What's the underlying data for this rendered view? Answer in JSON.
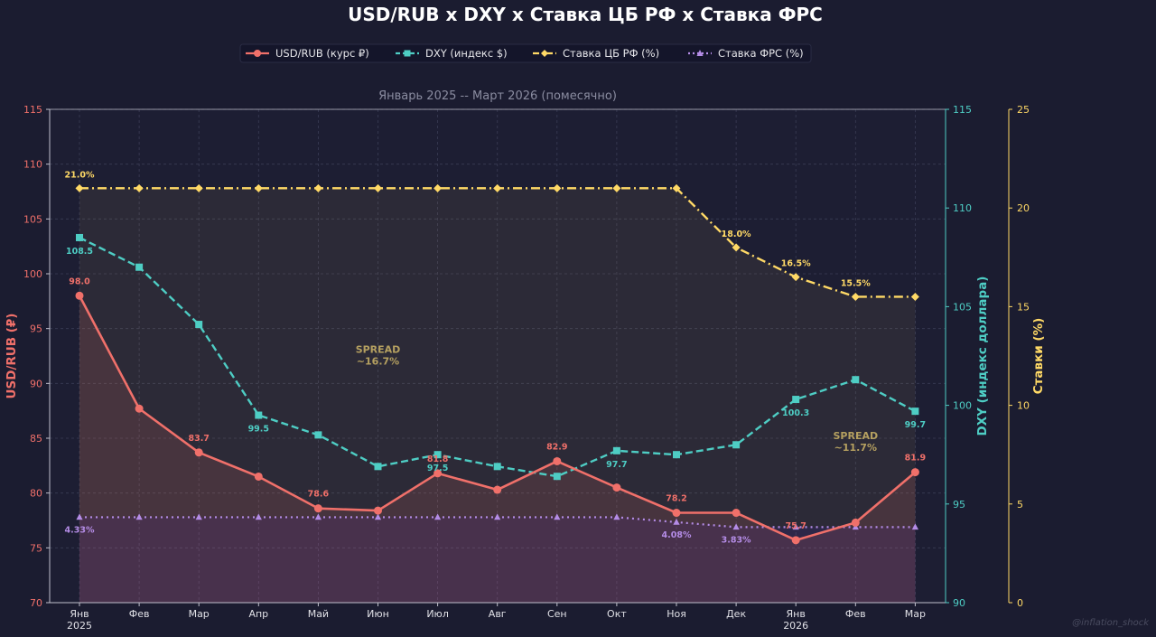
{
  "chart_data": {
    "type": "line",
    "title": "USD/RUB  x  DXY  x  Ставка ЦБ РФ  x  Ставка ФРС",
    "subtitle": "Январь 2025 -- Март 2026 (помесячно)",
    "categories": [
      "Янв",
      "Фев",
      "Мар",
      "Апр",
      "Май",
      "Июн",
      "Июл",
      "Авг",
      "Сен",
      "Окт",
      "Ноя",
      "Дек",
      "Янв",
      "Фев",
      "Мар"
    ],
    "year_labels": [
      "2025",
      "",
      "",
      "",
      "",
      "",
      "",
      "",
      "",
      "",
      "",
      "",
      "2026",
      "",
      ""
    ],
    "axes": {
      "left": {
        "label": "USD/RUB (₽)",
        "range": [
          70,
          115
        ],
        "ticks": [
          70,
          75,
          80,
          85,
          90,
          95,
          100,
          105,
          110,
          115
        ],
        "color": "#f0706a"
      },
      "right1": {
        "label": "DXY (индекс доллара)",
        "range": [
          90,
          115
        ],
        "ticks": [
          90,
          95,
          100,
          105,
          110,
          115
        ],
        "color": "#4ecdc4"
      },
      "right2": {
        "label": "Ставки (%)",
        "range": [
          0,
          25
        ],
        "ticks": [
          0,
          5,
          10,
          15,
          20,
          25
        ],
        "color": "#ffd966"
      }
    },
    "grid": true,
    "legend_position": "top-center",
    "series": [
      {
        "name": "USD/RUB (курс ₽)",
        "axis": "left",
        "color": "#f0706a",
        "values": [
          98.0,
          87.7,
          83.7,
          81.5,
          78.6,
          78.4,
          81.8,
          80.3,
          82.9,
          80.5,
          78.2,
          78.2,
          75.7,
          77.3,
          81.9
        ],
        "labels": [
          "98.0",
          "",
          "83.7",
          "",
          "78.6",
          "",
          "81.8",
          "",
          "82.9",
          "",
          "78.2",
          "",
          "75.7",
          "",
          "81.9"
        ]
      },
      {
        "name": "DXY (индекс $)",
        "axis": "right1",
        "color": "#4ecdc4",
        "values": [
          108.5,
          107.0,
          104.1,
          99.5,
          98.5,
          96.9,
          97.5,
          96.9,
          96.4,
          97.7,
          97.5,
          98.0,
          100.3,
          101.3,
          99.7
        ],
        "labels": [
          "108.5",
          "",
          "",
          "99.5",
          "",
          "",
          "97.5",
          "",
          "",
          "97.7",
          "",
          "",
          "100.3",
          "",
          "99.7"
        ]
      },
      {
        "name": "Ставка ЦБ РФ (%)",
        "axis": "right2",
        "color": "#ffd966",
        "values": [
          21.0,
          21.0,
          21.0,
          21.0,
          21.0,
          21.0,
          21.0,
          21.0,
          21.0,
          21.0,
          21.0,
          18.0,
          16.5,
          15.5,
          15.5
        ],
        "labels": [
          "21.0%",
          "",
          "",
          "",
          "",
          "",
          "",
          "",
          "",
          "",
          "",
          "18.0%",
          "16.5%",
          "15.5%",
          ""
        ]
      },
      {
        "name": "Ставка ФРС (%)",
        "axis": "right2",
        "color": "#b48ce6",
        "values": [
          4.33,
          4.33,
          4.33,
          4.33,
          4.33,
          4.33,
          4.33,
          4.33,
          4.33,
          4.33,
          4.08,
          3.83,
          3.83,
          3.83,
          3.83
        ],
        "labels": [
          "4.33%",
          "",
          "",
          "",
          "",
          "",
          "",
          "",
          "",
          "",
          "4.08%",
          "3.83%",
          "",
          "",
          ""
        ]
      }
    ],
    "annotations": [
      {
        "text": [
          "SPREAD",
          "~16.7%"
        ],
        "category_index": 5
      },
      {
        "text": [
          "SPREAD",
          "~11.7%"
        ],
        "category_index": 13
      }
    ],
    "watermark": "@inflation_shock"
  }
}
